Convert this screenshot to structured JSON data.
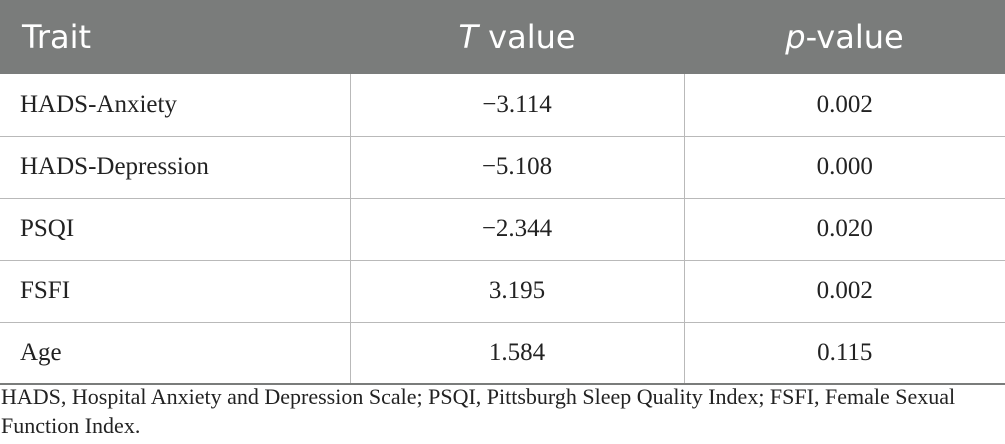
{
  "table": {
    "header": {
      "trait": "Trait",
      "t_value_italic": "T",
      "t_value_rest": " value",
      "p_value_italic": "p",
      "p_value_rest": "-value"
    },
    "rows": [
      {
        "trait": "HADS-Anxiety",
        "t_value": "−3.114",
        "p_value": "0.002"
      },
      {
        "trait": "HADS-Depression",
        "t_value": "−5.108",
        "p_value": "0.000"
      },
      {
        "trait": "PSQI",
        "t_value": "−2.344",
        "p_value": "0.020"
      },
      {
        "trait": "FSFI",
        "t_value": "3.195",
        "p_value": "0.002"
      },
      {
        "trait": "Age",
        "t_value": "1.584",
        "p_value": "0.115"
      }
    ]
  },
  "footnote": "HADS, Hospital Anxiety and Depression Scale; PSQI, Pittsburgh Sleep Quality Index; FSFI, Female Sexual Function Index.",
  "colors": {
    "header_background": "#7a7c7b",
    "header_text": "#ffffff",
    "row_border": "#b9b9b9"
  }
}
